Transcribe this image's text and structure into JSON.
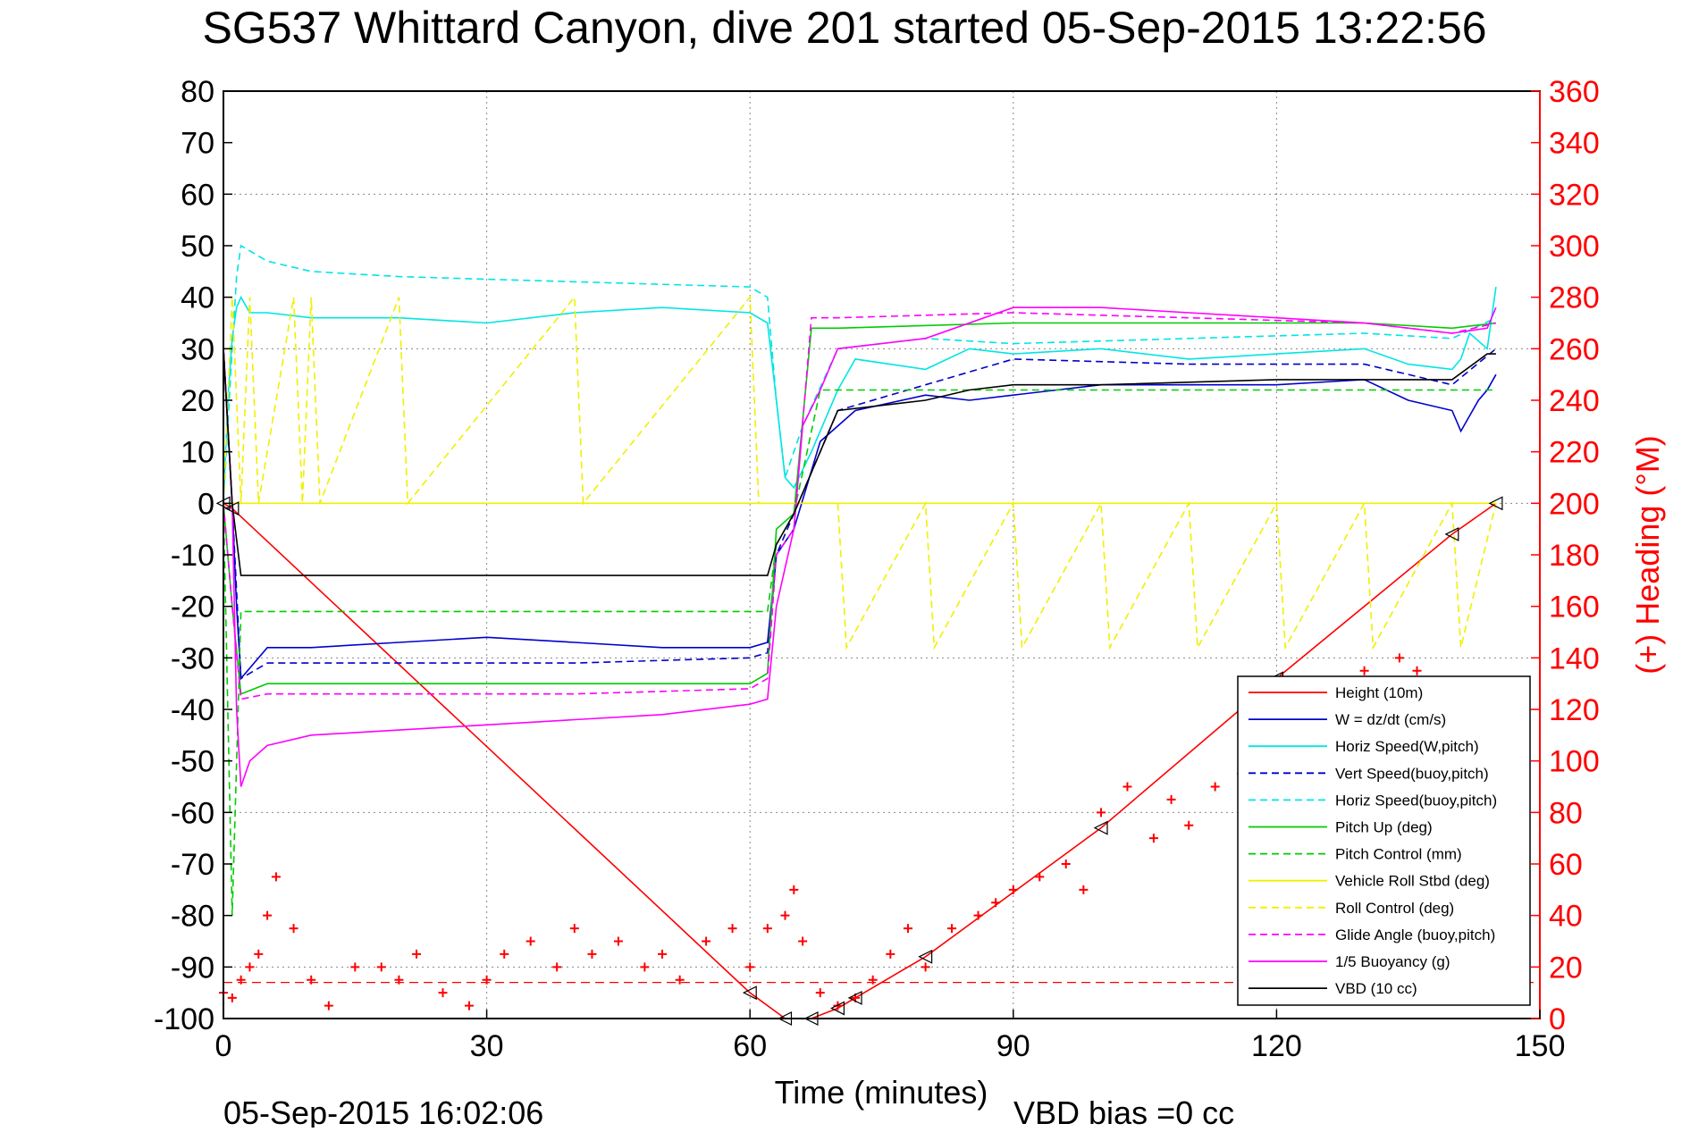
{
  "chart_data": {
    "type": "line",
    "title": "SG537 Whittard Canyon, dive 201 started 05-Sep-2015 13:22:56",
    "xlabel": "Time (minutes)",
    "ylabel_right": "(+) Heading (°M)",
    "footer_left": "05-Sep-2015 16:02:06",
    "footer_right": "VBD bias =0 cc",
    "xlim": [
      0,
      150
    ],
    "ylim": [
      -100,
      80
    ],
    "ylim_right": [
      0,
      360
    ],
    "x_ticks": [
      "0",
      "30",
      "60",
      "90",
      "120",
      "150"
    ],
    "y_ticks": [
      "80",
      "70",
      "60",
      "50",
      "40",
      "30",
      "20",
      "10",
      "0",
      "-10",
      "-20",
      "-30",
      "-40",
      "-50",
      "-60",
      "-70",
      "-80",
      "-90",
      "-100"
    ],
    "y_ticks_right": [
      "360",
      "340",
      "320",
      "300",
      "280",
      "260",
      "240",
      "220",
      "200",
      "180",
      "160",
      "140",
      "120",
      "100",
      "80",
      "60",
      "40",
      "20",
      "0"
    ],
    "grid": true,
    "legend_position": "bottom-right",
    "colors": {
      "red": "#ff0000",
      "blue": "#0000cc",
      "cyan": "#00e5e5",
      "green": "#00cc00",
      "yellow": "#f0f000",
      "magenta": "#ff00ff",
      "black": "#000000"
    },
    "series": [
      {
        "name": "Height (10m)",
        "color": "#ff0000",
        "dash": "solid",
        "axis": "left",
        "x": [
          0,
          1,
          60,
          64,
          67,
          70,
          72,
          80,
          100,
          120,
          140,
          145
        ],
        "y": [
          0,
          -1,
          -95,
          -100,
          -100,
          -98,
          -96,
          -88,
          -63,
          -34,
          -6,
          0
        ]
      },
      {
        "name": "W = dz/dt (cm/s)",
        "color": "#0000cc",
        "dash": "solid",
        "axis": "left",
        "x": [
          0,
          1,
          1.5,
          2,
          5,
          10,
          20,
          30,
          40,
          50,
          60,
          62,
          63,
          65,
          68,
          72,
          80,
          85,
          90,
          100,
          110,
          120,
          130,
          135,
          140,
          141,
          143,
          144,
          145
        ],
        "y": [
          30,
          0,
          -20,
          -34,
          -28,
          -28,
          -27,
          -26,
          -27,
          -28,
          -28,
          -27,
          -10,
          -5,
          12,
          18,
          21,
          20,
          21,
          23,
          23,
          23,
          24,
          20,
          18,
          14,
          20,
          22,
          25
        ]
      },
      {
        "name": "Horiz Speed(W,pitch)",
        "color": "#00e5e5",
        "dash": "solid",
        "axis": "left",
        "x": [
          0,
          0.5,
          1,
          1.5,
          2,
          3,
          5,
          10,
          20,
          30,
          40,
          50,
          60,
          62,
          63,
          64,
          65,
          67,
          70,
          72,
          80,
          85,
          90,
          100,
          110,
          120,
          130,
          135,
          140,
          141,
          142,
          144,
          145
        ],
        "y": [
          0,
          20,
          32,
          38,
          40,
          37,
          37,
          36,
          36,
          35,
          37,
          38,
          37,
          35,
          20,
          5,
          3,
          10,
          22,
          28,
          26,
          30,
          29,
          30,
          28,
          29,
          30,
          27,
          26,
          28,
          33,
          30,
          42
        ]
      },
      {
        "name": "Vert Speed(buoy,pitch)",
        "color": "#0000cc",
        "dash": "dashed",
        "axis": "left",
        "x": [
          0,
          1,
          2,
          5,
          20,
          40,
          60,
          62,
          63,
          65,
          70,
          80,
          90,
          110,
          130,
          140,
          145
        ],
        "y": [
          30,
          0,
          -34,
          -31,
          -31,
          -31,
          -30,
          -29,
          -10,
          -2,
          18,
          23,
          28,
          27,
          27,
          23,
          30
        ]
      },
      {
        "name": "Horiz Speed(buoy,pitch)",
        "color": "#00e5e5",
        "dash": "dashed",
        "axis": "left",
        "x": [
          0,
          1,
          1.5,
          2,
          5,
          10,
          20,
          40,
          60,
          62,
          63,
          64,
          66,
          70,
          80,
          90,
          110,
          130,
          140,
          145
        ],
        "y": [
          0,
          30,
          44,
          50,
          47,
          45,
          44,
          43,
          42,
          40,
          20,
          5,
          15,
          30,
          32,
          31,
          32,
          33,
          32,
          36
        ]
      },
      {
        "name": "Pitch Up (deg)",
        "color": "#00cc00",
        "dash": "solid",
        "axis": "left",
        "x": [
          0,
          1,
          2,
          5,
          20,
          40,
          60,
          62,
          63,
          65,
          67,
          70,
          90,
          110,
          130,
          140,
          145
        ],
        "y": [
          0,
          -20,
          -37,
          -35,
          -35,
          -35,
          -35,
          -33,
          -5,
          -2,
          34,
          34,
          35,
          35,
          35,
          34,
          35
        ]
      },
      {
        "name": "Pitch Control (mm)",
        "color": "#00cc00",
        "dash": "dashed",
        "axis": "left",
        "x": [
          0,
          1,
          2,
          5,
          20,
          40,
          62,
          63,
          65,
          68,
          90,
          110,
          130,
          140,
          145
        ],
        "y": [
          0,
          -80,
          -21,
          -21,
          -21,
          -21,
          -21,
          -8,
          -2,
          22,
          22,
          22,
          22,
          22,
          22
        ]
      },
      {
        "name": "Vehicle Roll Stbd (deg)",
        "color": "#f0f000",
        "dash": "solid",
        "axis": "left",
        "x": [
          0,
          20,
          40,
          60,
          80,
          100,
          120,
          140,
          145
        ],
        "y": [
          0,
          0,
          0,
          0,
          0,
          0,
          0,
          0,
          0
        ]
      },
      {
        "name": "Roll Control (deg)",
        "color": "#f0f000",
        "dash": "dashed",
        "axis": "left",
        "x": [
          0,
          1,
          2,
          3,
          4,
          8,
          9,
          10,
          11,
          20,
          21,
          40,
          41,
          60,
          61,
          70,
          71,
          80,
          81,
          90,
          91,
          100,
          101,
          110,
          111,
          120,
          121,
          130,
          131,
          140,
          141,
          145
        ],
        "y": [
          0,
          40,
          0,
          40,
          0,
          40,
          0,
          40,
          0,
          40,
          0,
          40,
          0,
          40,
          0,
          0,
          -28,
          0,
          -28,
          0,
          -28,
          0,
          -28,
          0,
          -28,
          0,
          -28,
          0,
          -28,
          0,
          -28,
          0
        ]
      },
      {
        "name": "Glide Angle (buoy,pitch)",
        "color": "#ff00ff",
        "dash": "dashed",
        "axis": "left",
        "x": [
          0,
          1,
          2,
          5,
          20,
          40,
          60,
          62,
          63,
          65,
          67,
          70,
          90,
          110,
          130,
          140,
          145
        ],
        "y": [
          0,
          -20,
          -38,
          -37,
          -37,
          -37,
          -36,
          -34,
          -10,
          -5,
          36,
          36,
          37,
          36,
          35,
          33,
          35
        ]
      },
      {
        "name": "1/5 Buoyancy (g)",
        "color": "#ff00ff",
        "dash": "solid",
        "axis": "left",
        "x": [
          0,
          1,
          1.5,
          2,
          3,
          5,
          10,
          20,
          30,
          40,
          50,
          60,
          62,
          63,
          65,
          66,
          68,
          70,
          80,
          90,
          100,
          110,
          120,
          130,
          140,
          144,
          145
        ],
        "y": [
          30,
          0,
          -40,
          -55,
          -50,
          -47,
          -45,
          -44,
          -43,
          -42,
          -41,
          -39,
          -38,
          -20,
          -5,
          15,
          22,
          30,
          32,
          38,
          38,
          37,
          36,
          35,
          33,
          34,
          38
        ]
      },
      {
        "name": "VBD (10 cc)",
        "color": "#000000",
        "dash": "solid",
        "axis": "left",
        "x": [
          0,
          1,
          2,
          30,
          62,
          63,
          65,
          70,
          80,
          85,
          90,
          100,
          120,
          140,
          144,
          145
        ],
        "y": [
          30,
          0,
          -14,
          -14,
          -14,
          -8,
          -2,
          18,
          20,
          22,
          23,
          23,
          24,
          24,
          29,
          29
        ]
      },
      {
        "name": "Heading (°M)",
        "color": "#ff0000",
        "marker": "+",
        "axis": "right",
        "x": [
          0,
          1,
          2,
          3,
          4,
          5,
          6,
          8,
          10,
          12,
          15,
          18,
          20,
          22,
          25,
          28,
          30,
          32,
          35,
          38,
          40,
          42,
          45,
          48,
          50,
          52,
          55,
          58,
          60,
          62,
          64,
          65,
          66,
          68,
          70,
          72,
          74,
          76,
          78,
          80,
          83,
          86,
          88,
          90,
          93,
          96,
          98,
          100,
          103,
          106,
          108,
          110,
          113,
          116,
          118,
          120,
          123,
          126,
          128,
          130,
          132,
          134,
          136
        ],
        "y": [
          10,
          8,
          15,
          20,
          25,
          40,
          55,
          35,
          15,
          5,
          20,
          20,
          15,
          25,
          10,
          5,
          15,
          25,
          30,
          20,
          35,
          25,
          30,
          20,
          25,
          15,
          30,
          35,
          20,
          35,
          40,
          50,
          30,
          10,
          5,
          8,
          15,
          25,
          35,
          20,
          35,
          40,
          45,
          50,
          55,
          60,
          50,
          80,
          90,
          70,
          85,
          75,
          90,
          95,
          100,
          110,
          120,
          115,
          130,
          135,
          130,
          140,
          135
        ]
      }
    ]
  }
}
